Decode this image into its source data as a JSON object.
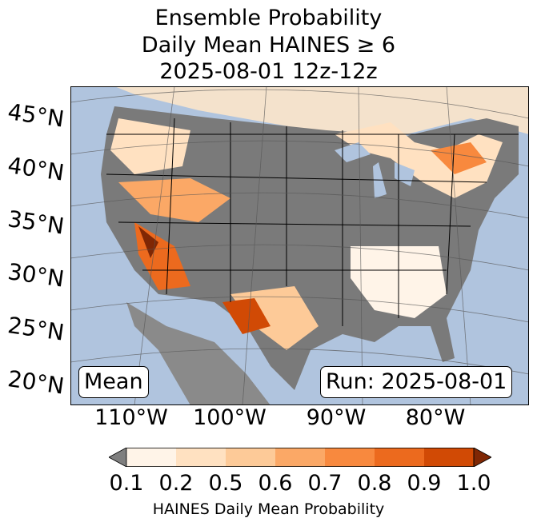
{
  "title": {
    "line1": "Ensemble Probability",
    "line2": "Daily Mean HAINES ≥ 6",
    "line3": "2025-08-01 12z-12z"
  },
  "lat_labels": [
    "45°N",
    "40°N",
    "35°N",
    "30°N",
    "25°N",
    "20°N"
  ],
  "lon_labels": [
    "110°W",
    "100°W",
    "90°W",
    "80°W"
  ],
  "mean_label": "Mean",
  "run_label": "Run: 2025-08-01",
  "colorbar": {
    "ticks": [
      "0.1",
      "0.2",
      "0.5",
      "0.6",
      "0.7",
      "0.8",
      "0.9",
      "1.0"
    ],
    "label": "HAINES Daily Mean Probability",
    "colors": [
      "#fff4e8",
      "#ffe1c1",
      "#fdca98",
      "#fba866",
      "#f8893e",
      "#ec6a1e",
      "#d14a05"
    ],
    "under_color": "#7f7f7f",
    "over_color": "#7f2704"
  },
  "map_colors": {
    "ocean": "#b0c4de",
    "zero_prob": "#7a7a7a",
    "land_outside": "#8a8a8a"
  }
}
